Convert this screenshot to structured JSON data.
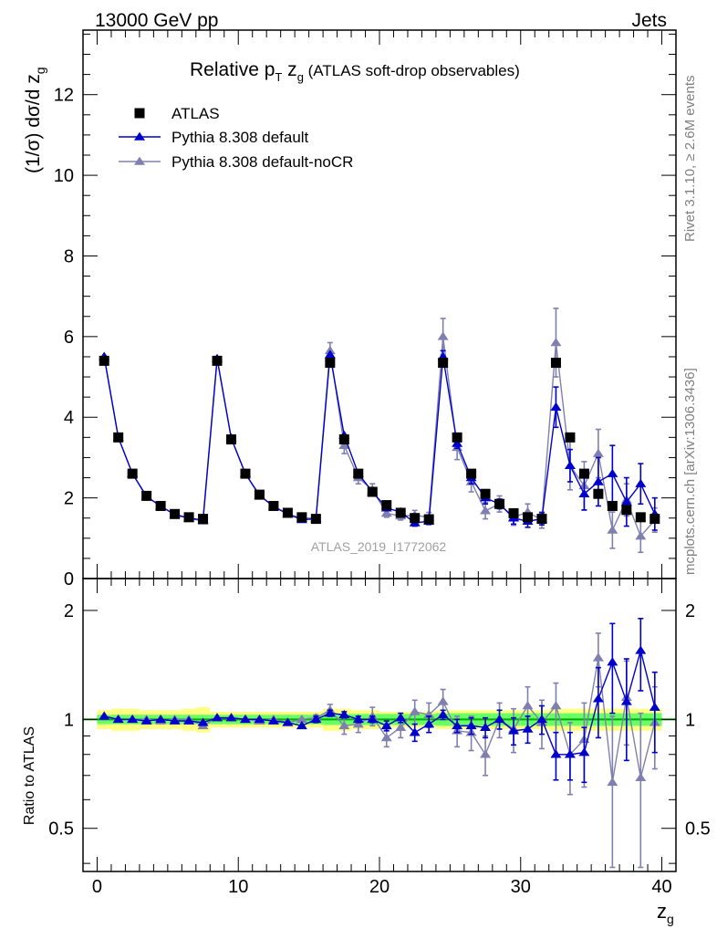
{
  "header": {
    "energy": "13000 GeV pp",
    "category": "Jets"
  },
  "side_labels": {
    "rivet": "Rivet 3.1.10, ≥ 2.6M events",
    "mcplots": "mcplots.cern.ch [arXiv:1306.3436]"
  },
  "main_plot": {
    "title_prefix": "Relative p",
    "title_sub1": "T",
    "title_mid": " z",
    "title_sub2": "g",
    "title_suffix": " (ATLAS soft-drop observables)",
    "ylabel_prefix": "(1/σ) dσ/d z",
    "ylabel_sub": "g",
    "watermark": "ATLAS_2019_I1772062"
  },
  "ratio_plot": {
    "ylabel": "Ratio to ATLAS"
  },
  "x_axis": {
    "label": "z",
    "label_sub": "g"
  },
  "colors": {
    "data": "#000000",
    "default": "#0000cc",
    "noCR": "#8080b0",
    "band_inner": "#66ff66",
    "band_outer": "#ffff80",
    "ref_line": "#00aa00"
  },
  "chart_data": {
    "type": "scatter",
    "x": [
      0.5,
      1.5,
      2.5,
      3.5,
      4.5,
      5.5,
      6.5,
      7.5,
      8.5,
      9.5,
      10.5,
      11.5,
      12.5,
      13.5,
      14.5,
      15.5,
      16.5,
      17.5,
      18.5,
      19.5,
      20.5,
      21.5,
      22.5,
      23.5,
      24.5,
      25.5,
      26.5,
      27.5,
      28.5,
      29.5,
      30.5,
      31.5,
      32.5,
      33.5,
      34.5,
      35.5,
      36.5,
      37.5,
      38.5,
      39.5
    ],
    "xlim": [
      -1,
      41
    ],
    "x_ticks": [
      0,
      10,
      20,
      30,
      40
    ],
    "main": {
      "ylim": [
        0,
        13.6
      ],
      "y_ticks": [
        0,
        2,
        4,
        6,
        8,
        10,
        12
      ]
    },
    "ratio": {
      "ylim": [
        0.38,
        2.45
      ],
      "y_ticks": [
        0.5,
        1,
        2
      ],
      "log_scale": true
    },
    "legend": {
      "placement": "top-left",
      "entries": [
        "ATLAS",
        "Pythia 8.308 default",
        "Pythia 8.308 default-noCR"
      ]
    },
    "series": [
      {
        "name": "ATLAS",
        "marker": "square",
        "values": [
          5.4,
          3.5,
          2.6,
          2.05,
          1.8,
          1.6,
          1.52,
          1.48,
          5.4,
          3.45,
          2.6,
          2.08,
          1.8,
          1.63,
          1.52,
          1.48,
          5.35,
          3.45,
          2.6,
          2.15,
          1.82,
          1.63,
          1.5,
          1.47,
          5.35,
          3.5,
          2.6,
          2.1,
          1.85,
          1.62,
          1.52,
          1.48,
          5.35,
          3.5,
          2.6,
          2.1,
          1.8,
          1.7,
          1.52,
          1.48
        ]
      },
      {
        "name": "Pythia 8.308 default",
        "marker": "triangle",
        "values": [
          5.5,
          3.5,
          2.6,
          2.03,
          1.8,
          1.58,
          1.5,
          1.45,
          5.45,
          3.48,
          2.6,
          2.07,
          1.78,
          1.6,
          1.46,
          1.48,
          5.55,
          3.55,
          2.6,
          2.15,
          1.75,
          1.65,
          1.38,
          1.42,
          5.5,
          3.35,
          2.5,
          2.0,
          1.85,
          1.5,
          1.42,
          1.48,
          4.25,
          2.8,
          2.1,
          2.4,
          2.6,
          1.9,
          2.35,
          1.6
        ],
        "errors": [
          0.03,
          0.03,
          0.03,
          0.03,
          0.03,
          0.03,
          0.03,
          0.03,
          0.04,
          0.04,
          0.03,
          0.03,
          0.03,
          0.03,
          0.03,
          0.03,
          0.05,
          0.05,
          0.04,
          0.04,
          0.06,
          0.06,
          0.08,
          0.08,
          0.15,
          0.12,
          0.15,
          0.15,
          0.12,
          0.15,
          0.15,
          0.15,
          0.5,
          0.4,
          0.4,
          0.6,
          0.7,
          0.6,
          0.5,
          0.4
        ]
      },
      {
        "name": "Pythia 8.308 default-noCR",
        "marker": "triangle",
        "values": [
          5.5,
          3.5,
          2.6,
          2.05,
          1.78,
          1.6,
          1.5,
          1.42,
          5.45,
          3.48,
          2.6,
          2.05,
          1.8,
          1.6,
          1.5,
          1.5,
          5.65,
          3.3,
          2.5,
          2.2,
          1.62,
          1.55,
          1.57,
          1.52,
          6.0,
          3.25,
          2.4,
          1.68,
          1.85,
          1.52,
          1.65,
          1.45,
          5.85,
          2.8,
          2.3,
          3.1,
          1.2,
          1.95,
          1.05,
          1.45
        ],
        "errors": [
          0.03,
          0.03,
          0.03,
          0.03,
          0.03,
          0.03,
          0.03,
          0.03,
          0.04,
          0.04,
          0.03,
          0.03,
          0.03,
          0.03,
          0.03,
          0.03,
          0.2,
          0.2,
          0.15,
          0.15,
          0.1,
          0.1,
          0.12,
          0.12,
          0.45,
          0.3,
          0.25,
          0.2,
          0.2,
          0.2,
          0.2,
          0.2,
          0.85,
          0.6,
          0.6,
          0.6,
          0.45,
          0.4,
          0.4,
          0.3
        ]
      }
    ],
    "ratio_series": [
      {
        "name": "Pythia 8.308 default",
        "values": [
          1.02,
          1.0,
          1.0,
          0.99,
          1.0,
          0.99,
          0.99,
          0.98,
          1.01,
          1.01,
          1.0,
          1.0,
          0.99,
          0.98,
          0.96,
          1.0,
          1.04,
          1.03,
          1.0,
          1.0,
          0.96,
          1.01,
          0.92,
          0.97,
          1.03,
          0.96,
          0.96,
          0.95,
          1.0,
          0.93,
          0.94,
          1.0,
          0.8,
          0.8,
          0.81,
          1.14,
          1.44,
          1.12,
          1.55,
          1.08
        ],
        "errors": [
          0.01,
          0.01,
          0.01,
          0.01,
          0.01,
          0.01,
          0.01,
          0.01,
          0.01,
          0.01,
          0.01,
          0.01,
          0.01,
          0.01,
          0.01,
          0.02,
          0.02,
          0.02,
          0.02,
          0.02,
          0.03,
          0.03,
          0.05,
          0.05,
          0.03,
          0.04,
          0.05,
          0.06,
          0.06,
          0.08,
          0.08,
          0.09,
          0.12,
          0.12,
          0.14,
          0.25,
          0.4,
          0.35,
          0.35,
          0.27
        ]
      },
      {
        "name": "Pythia 8.308 default-noCR",
        "values": [
          1.02,
          1.0,
          1.0,
          1.0,
          0.99,
          1.0,
          1.0,
          0.96,
          1.01,
          1.01,
          1.0,
          0.99,
          1.0,
          0.98,
          1.0,
          1.01,
          1.06,
          0.96,
          0.97,
          1.02,
          0.89,
          0.95,
          1.05,
          1.03,
          1.12,
          0.93,
          0.92,
          0.8,
          1.0,
          0.94,
          1.09,
          0.98,
          1.09,
          0.8,
          0.88,
          1.48,
          0.67,
          1.15,
          0.69,
          0.98
        ],
        "errors": [
          0.01,
          0.01,
          0.01,
          0.01,
          0.01,
          0.01,
          0.01,
          0.01,
          0.01,
          0.01,
          0.01,
          0.01,
          0.01,
          0.01,
          0.01,
          0.02,
          0.04,
          0.05,
          0.05,
          0.06,
          0.05,
          0.06,
          0.08,
          0.08,
          0.09,
          0.09,
          0.1,
          0.1,
          0.11,
          0.13,
          0.14,
          0.15,
          0.17,
          0.18,
          0.23,
          0.25,
          0.35,
          0.3,
          0.35,
          0.25
        ]
      }
    ],
    "ratio_band": {
      "inner": [
        0.03,
        0.03,
        0.03,
        0.03,
        0.03,
        0.03,
        0.03,
        0.03,
        0.03,
        0.03,
        0.03,
        0.03,
        0.03,
        0.03,
        0.03,
        0.03,
        0.035,
        0.035,
        0.035,
        0.035,
        0.035,
        0.035,
        0.035,
        0.035,
        0.04,
        0.04,
        0.04,
        0.04,
        0.04,
        0.04,
        0.04,
        0.04,
        0.04,
        0.04,
        0.04,
        0.04,
        0.04,
        0.04,
        0.04,
        0.04
      ],
      "outer": [
        0.06,
        0.07,
        0.07,
        0.06,
        0.06,
        0.06,
        0.07,
        0.08,
        0.05,
        0.05,
        0.05,
        0.05,
        0.05,
        0.05,
        0.05,
        0.05,
        0.07,
        0.07,
        0.06,
        0.06,
        0.05,
        0.05,
        0.05,
        0.05,
        0.06,
        0.06,
        0.06,
        0.06,
        0.06,
        0.06,
        0.06,
        0.06,
        0.07,
        0.07,
        0.07,
        0.07,
        0.07,
        0.07,
        0.07,
        0.07
      ]
    }
  }
}
